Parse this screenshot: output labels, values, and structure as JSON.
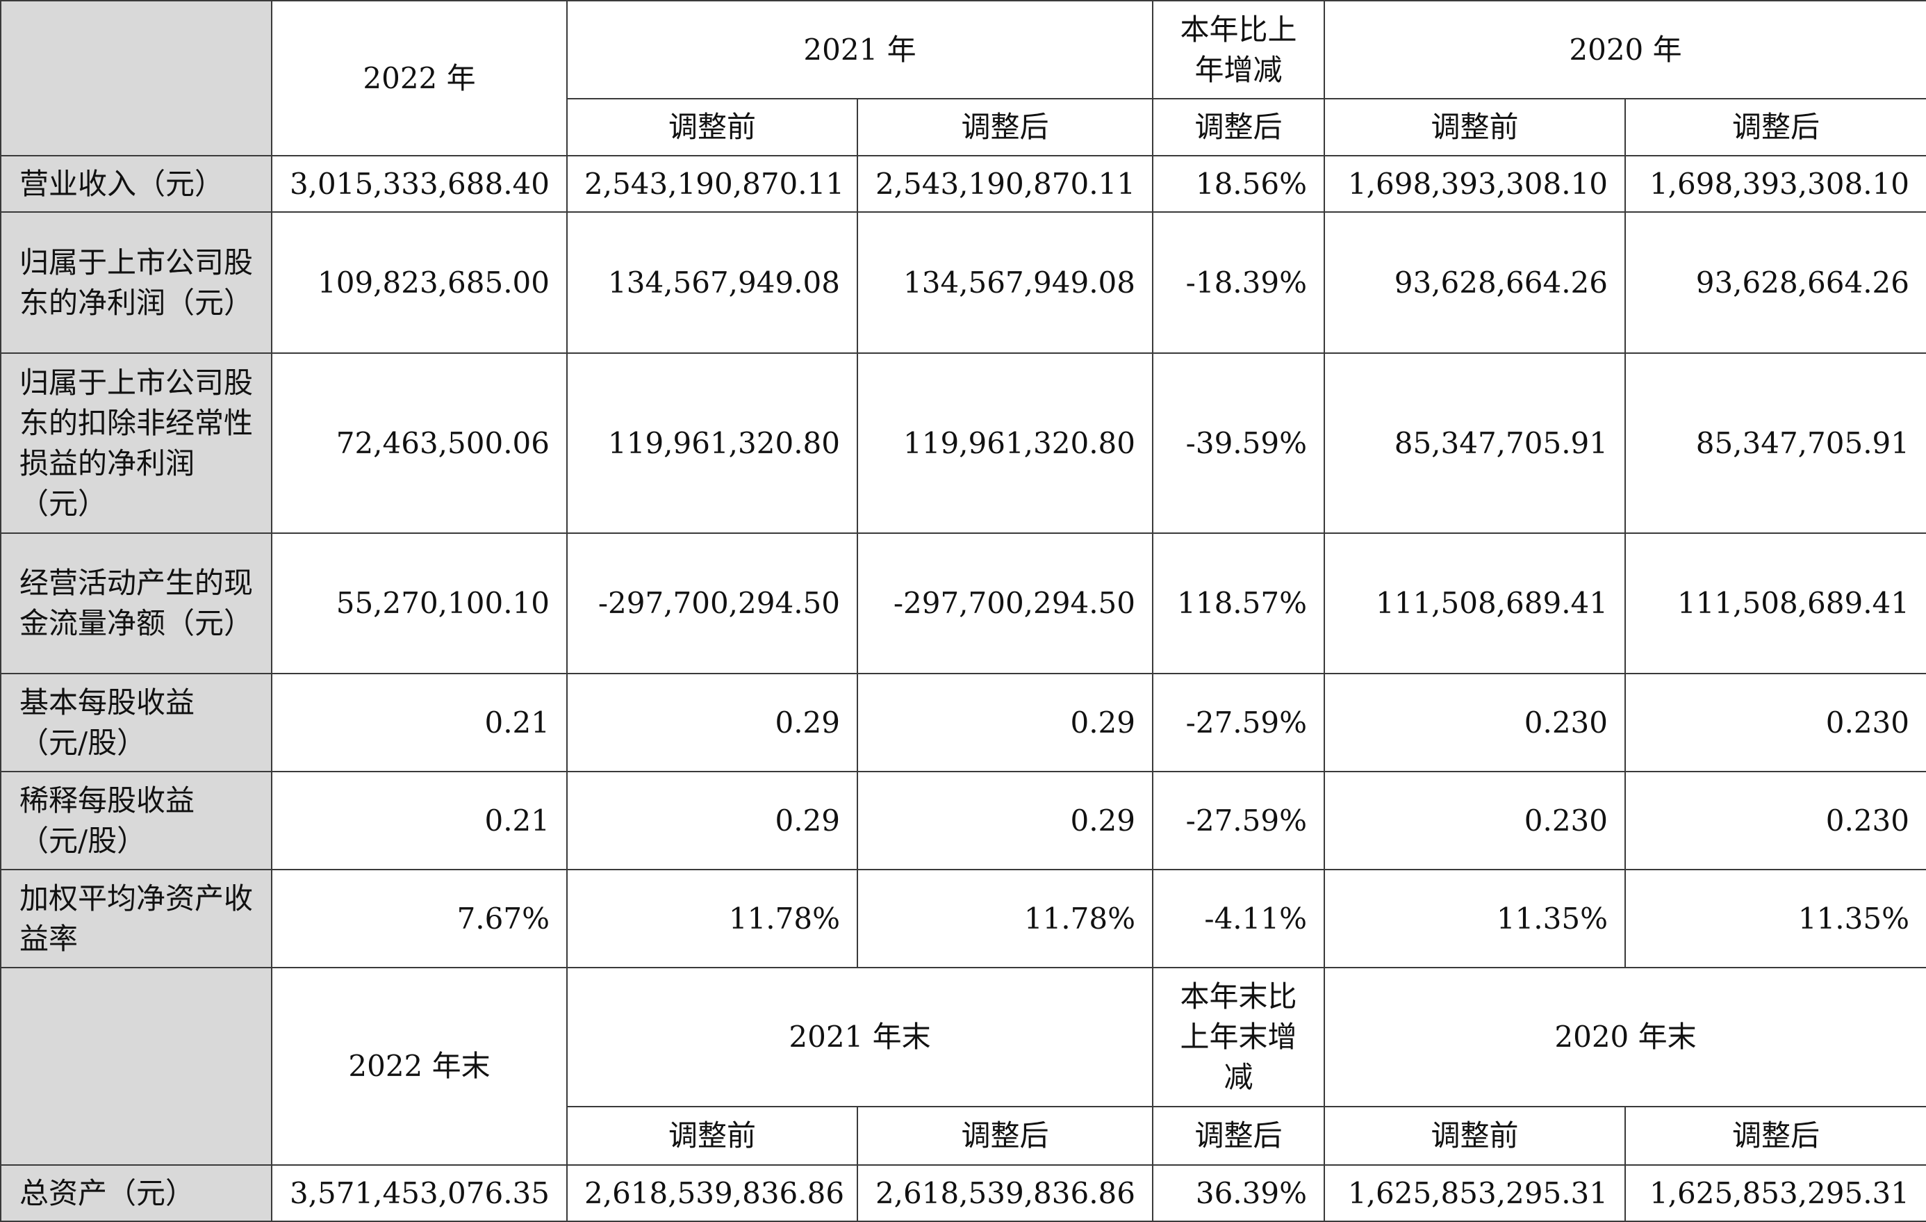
{
  "header1": {
    "year2022": "2022 年",
    "year2021": "2021 年",
    "change": "本年比上年增减",
    "year2020": "2020 年",
    "before": "调整前",
    "after": "调整后"
  },
  "rows": [
    {
      "label": "营业收入（元）",
      "v2022": "3,015,333,688.40",
      "v2021_before": "2,543,190,870.11",
      "v2021_after": "2,543,190,870.11",
      "change": "18.56%",
      "v2020_before": "1,698,393,308.10",
      "v2020_after": "1,698,393,308.10"
    },
    {
      "label": "归属于上市公司股东的净利润（元）",
      "v2022": "109,823,685.00",
      "v2021_before": "134,567,949.08",
      "v2021_after": "134,567,949.08",
      "change": "-18.39%",
      "v2020_before": "93,628,664.26",
      "v2020_after": "93,628,664.26"
    },
    {
      "label": "归属于上市公司股东的扣除非经常性损益的净利润（元）",
      "v2022": "72,463,500.06",
      "v2021_before": "119,961,320.80",
      "v2021_after": "119,961,320.80",
      "change": "-39.59%",
      "v2020_before": "85,347,705.91",
      "v2020_after": "85,347,705.91"
    },
    {
      "label": "经营活动产生的现金流量净额（元）",
      "v2022": "55,270,100.10",
      "v2021_before": "-297,700,294.50",
      "v2021_after": "-297,700,294.50",
      "change": "118.57%",
      "v2020_before": "111,508,689.41",
      "v2020_after": "111,508,689.41"
    },
    {
      "label": "基本每股收益（元/股）",
      "v2022": "0.21",
      "v2021_before": "0.29",
      "v2021_after": "0.29",
      "change": "-27.59%",
      "v2020_before": "0.230",
      "v2020_after": "0.230"
    },
    {
      "label": "稀释每股收益（元/股）",
      "v2022": "0.21",
      "v2021_before": "0.29",
      "v2021_after": "0.29",
      "change": "-27.59%",
      "v2020_before": "0.230",
      "v2020_after": "0.230"
    },
    {
      "label": "加权平均净资产收益率",
      "v2022": "7.67%",
      "v2021_before": "11.78%",
      "v2021_after": "11.78%",
      "change": "-4.11%",
      "v2020_before": "11.35%",
      "v2020_after": "11.35%"
    }
  ],
  "header2": {
    "year2022": "2022 年末",
    "year2021": "2021 年末",
    "change": "本年末比上年末增减",
    "year2020": "2020 年末",
    "before": "调整前",
    "after": "调整后"
  },
  "assets": {
    "label": "总资产（元）",
    "v2022": "3,571,453,076.35",
    "v2021_before": "2,618,539,836.86",
    "v2021_after": "2,618,539,836.86",
    "change": "36.39%",
    "v2020_before": "1,625,853,295.31",
    "v2020_after": "1,625,853,295.31"
  }
}
